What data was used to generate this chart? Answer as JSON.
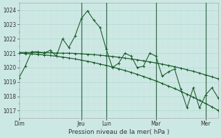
{
  "xlabel": "Pression niveau de la mer( hPa )",
  "bg_color": "#cce8e4",
  "grid_color_major": "#b0d8cc",
  "grid_color_minor": "#cce0da",
  "line_color": "#1a5c2a",
  "ylim": [
    1016.5,
    1024.5
  ],
  "xlim": [
    0,
    192
  ],
  "day_labels": [
    "Dim",
    "Jeu",
    "Lun",
    "Mar",
    "Mer"
  ],
  "day_positions": [
    0,
    60,
    84,
    132,
    180
  ],
  "yticks": [
    1017,
    1018,
    1019,
    1020,
    1021,
    1022,
    1023,
    1024
  ],
  "series1_x": [
    0,
    6,
    12,
    18,
    24,
    30,
    36,
    42,
    48,
    54,
    60,
    66,
    72,
    78,
    84,
    90,
    96,
    102,
    108,
    114,
    120,
    126,
    132,
    138,
    144,
    150,
    156,
    162,
    168,
    174,
    180,
    186,
    192
  ],
  "series1_y": [
    1019.3,
    1020.1,
    1021.1,
    1021.1,
    1021.0,
    1021.2,
    1020.8,
    1022.0,
    1021.4,
    1022.2,
    1023.4,
    1023.95,
    1023.3,
    1022.8,
    1021.3,
    1020.0,
    1020.3,
    1021.0,
    1020.8,
    1020.0,
    1020.1,
    1021.0,
    1020.8,
    1019.4,
    1019.7,
    1019.9,
    1018.5,
    1017.2,
    1018.6,
    1017.2,
    1018.1,
    1018.6,
    1017.9
  ],
  "series2_x": [
    0,
    6,
    12,
    18,
    24,
    30,
    36,
    42,
    48,
    54,
    60,
    66,
    72,
    78,
    84,
    90,
    96,
    102,
    108,
    114,
    120,
    126,
    132,
    138,
    144,
    150,
    156,
    162,
    168,
    174,
    180,
    186,
    192
  ],
  "series2_y": [
    1021.05,
    1021.05,
    1021.05,
    1021.05,
    1021.05,
    1021.03,
    1021.01,
    1021.0,
    1021.0,
    1020.98,
    1020.96,
    1020.93,
    1020.9,
    1020.86,
    1020.82,
    1020.77,
    1020.72,
    1020.66,
    1020.6,
    1020.54,
    1020.47,
    1020.4,
    1020.32,
    1020.24,
    1020.15,
    1020.06,
    1019.96,
    1019.85,
    1019.74,
    1019.62,
    1019.49,
    1019.36,
    1019.22
  ],
  "series3_x": [
    0,
    6,
    12,
    18,
    24,
    30,
    36,
    42,
    48,
    54,
    60,
    66,
    72,
    78,
    84,
    90,
    96,
    102,
    108,
    114,
    120,
    126,
    132,
    138,
    144,
    150,
    156,
    162,
    168,
    174,
    180,
    186,
    192
  ],
  "series3_y": [
    1021.0,
    1020.98,
    1020.95,
    1020.92,
    1020.88,
    1020.84,
    1020.79,
    1020.73,
    1020.67,
    1020.6,
    1020.52,
    1020.44,
    1020.35,
    1020.25,
    1020.15,
    1020.04,
    1019.92,
    1019.8,
    1019.67,
    1019.53,
    1019.38,
    1019.23,
    1019.07,
    1018.9,
    1018.72,
    1018.54,
    1018.35,
    1018.15,
    1017.94,
    1017.72,
    1017.5,
    1017.27,
    1017.03
  ],
  "vline_positions": [
    60,
    84,
    132,
    180
  ]
}
